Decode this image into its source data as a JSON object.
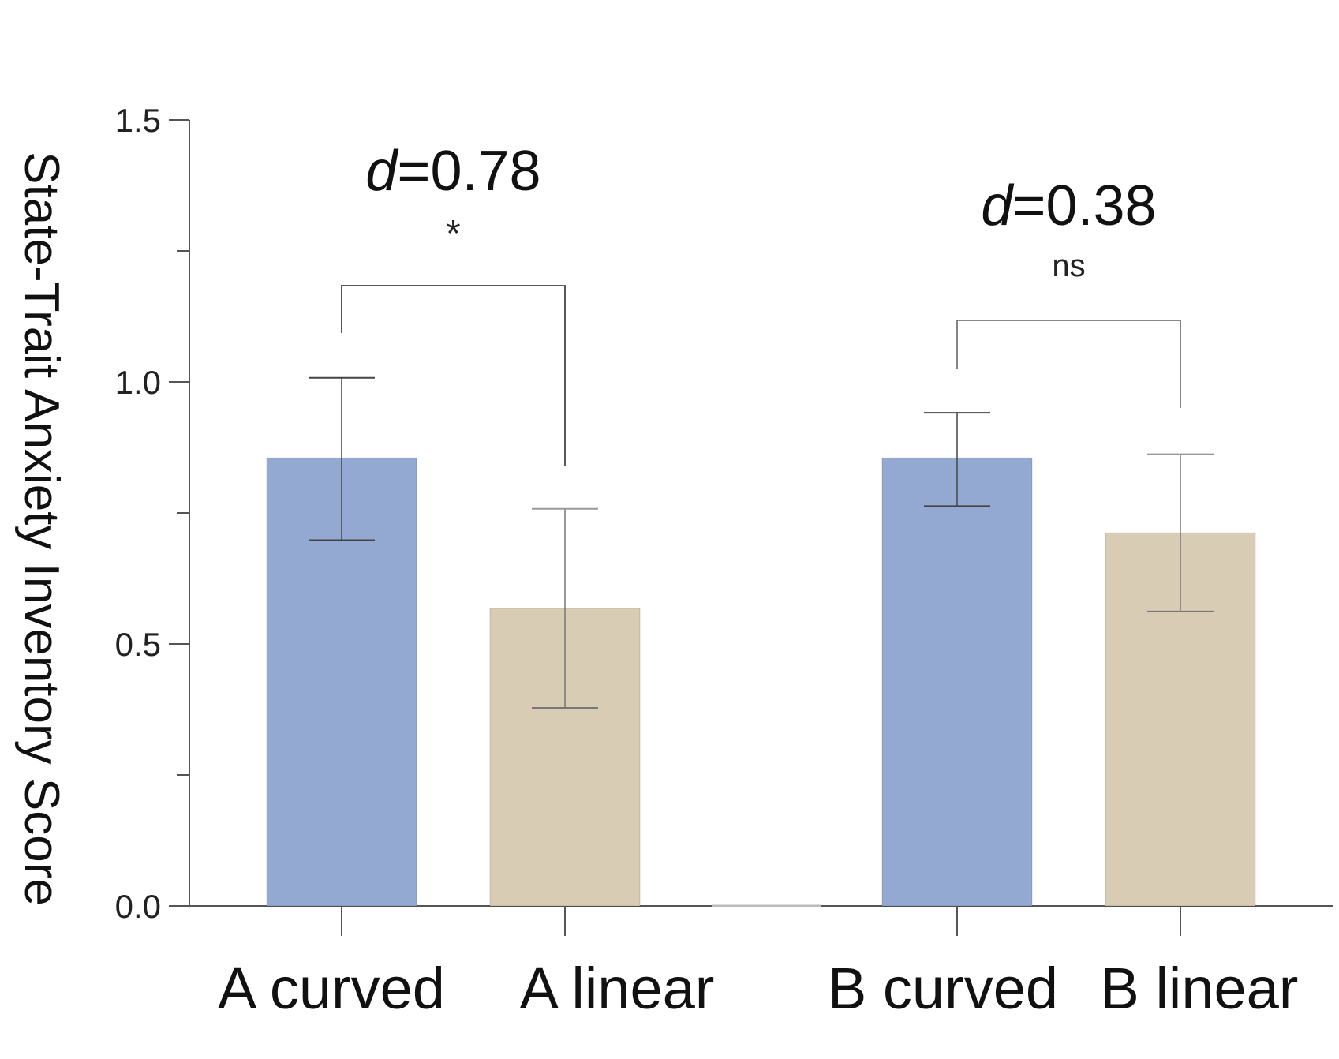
{
  "chart_data": {
    "type": "bar",
    "title": "",
    "xlabel": "",
    "ylabel": "State-Trait Anxiety Inventory Score",
    "ylim": [
      0,
      1.5
    ],
    "yticks": [
      "0.0",
      "0.5",
      "1.0",
      "1.5"
    ],
    "categories": [
      "A curved",
      "A linear",
      "B curved",
      "B linear"
    ],
    "values": [
      0.855,
      0.568,
      0.855,
      0.712
    ],
    "error_low": [
      0.698,
      0.378,
      0.763,
      0.562
    ],
    "error_high": [
      1.008,
      0.758,
      0.941,
      0.862
    ],
    "bar_colors": [
      "#94A9D2",
      "#D9CCB4",
      "#94A9D2",
      "#D9CCB4"
    ],
    "grid": false,
    "legend": false,
    "comparisons": [
      {
        "between": [
          "A curved",
          "A linear"
        ],
        "effect_prefix": "d",
        "effect_value": "=0.78",
        "significance": "*"
      },
      {
        "between": [
          "B curved",
          "B linear"
        ],
        "effect_prefix": "d",
        "effect_value": "=0.38",
        "significance": "ns"
      }
    ]
  }
}
